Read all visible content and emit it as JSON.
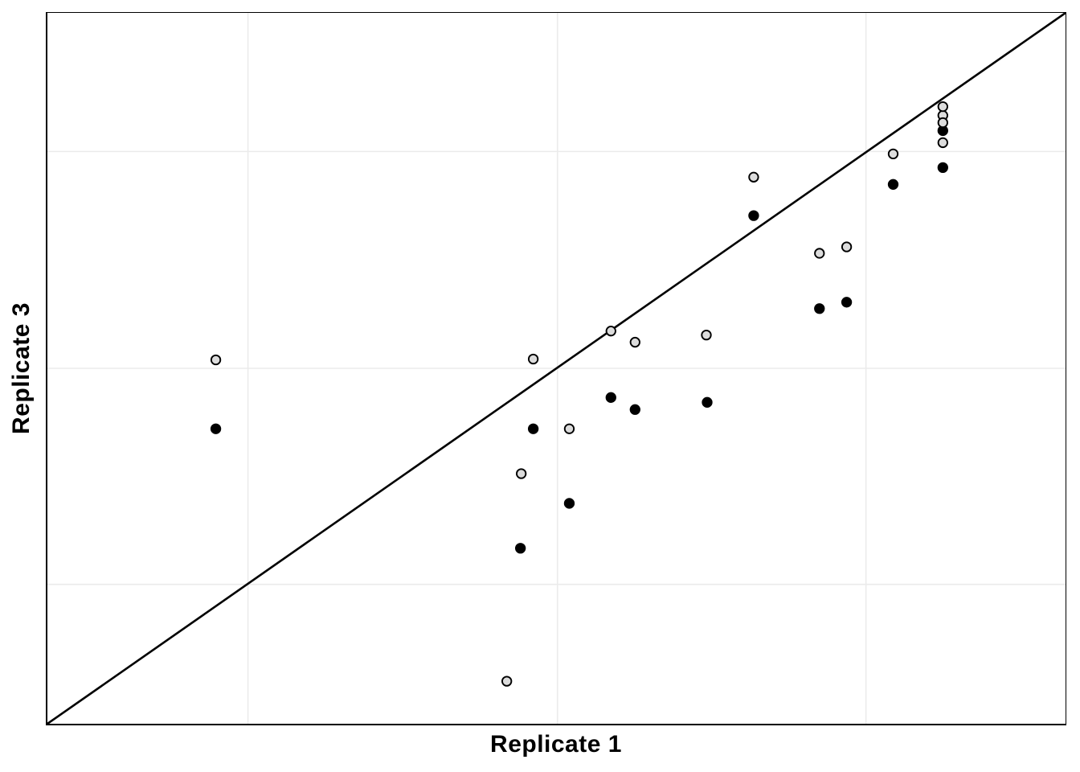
{
  "chart_data": {
    "type": "scatter",
    "title": "",
    "xlabel": "Replicate 1",
    "ylabel": "Replicate 3",
    "x_tick_labels": [],
    "y_tick_labels": [],
    "xlim": [
      0,
      1
    ],
    "ylim": [
      0,
      1
    ],
    "coordinates_note": "no numeric tick labels are shown in the figure; point coordinates below are normalized fractions of the panel (0,0 = bottom-left, 1,1 = top-right)",
    "grid": true,
    "legend_position": "none",
    "gridline_positions": {
      "x": [
        0.197,
        0.501,
        0.804
      ],
      "y": [
        0.196,
        0.5,
        0.805
      ]
    },
    "identity_line": {
      "show": true,
      "from": [
        0,
        0
      ],
      "to": [
        1,
        1
      ]
    },
    "series_colors": {
      "gray": "#dcdcdc",
      "black": "#000000"
    },
    "series": [
      {
        "name": "light-gray-points",
        "key": "gray",
        "fill": "#dcdcdc",
        "count": 16
      },
      {
        "name": "black-points",
        "key": "black",
        "fill": "#000000",
        "count": 13
      }
    ],
    "points": [
      {
        "x": 0.1654,
        "y": 0.5119,
        "series": "gray"
      },
      {
        "x": 0.1654,
        "y": 0.4149,
        "series": "black"
      },
      {
        "x": 0.4772,
        "y": 0.513,
        "series": "gray"
      },
      {
        "x": 0.4772,
        "y": 0.4149,
        "series": "black"
      },
      {
        "x": 0.4654,
        "y": 0.3518,
        "series": "gray"
      },
      {
        "x": 0.4646,
        "y": 0.2469,
        "series": "black"
      },
      {
        "x": 0.5126,
        "y": 0.4149,
        "series": "gray"
      },
      {
        "x": 0.5126,
        "y": 0.31,
        "series": "black"
      },
      {
        "x": 0.4512,
        "y": 0.0598,
        "series": "gray"
      },
      {
        "x": 0.5535,
        "y": 0.5524,
        "series": "gray"
      },
      {
        "x": 0.5535,
        "y": 0.4589,
        "series": "black"
      },
      {
        "x": 0.5772,
        "y": 0.5367,
        "series": "gray"
      },
      {
        "x": 0.5772,
        "y": 0.442,
        "series": "black"
      },
      {
        "x": 0.6472,
        "y": 0.5468,
        "series": "gray"
      },
      {
        "x": 0.648,
        "y": 0.4521,
        "series": "black"
      },
      {
        "x": 0.6937,
        "y": 0.7689,
        "series": "gray"
      },
      {
        "x": 0.6937,
        "y": 0.7148,
        "series": "black"
      },
      {
        "x": 0.7583,
        "y": 0.6618,
        "series": "gray"
      },
      {
        "x": 0.7583,
        "y": 0.584,
        "series": "black"
      },
      {
        "x": 0.785,
        "y": 0.6708,
        "series": "gray"
      },
      {
        "x": 0.785,
        "y": 0.593,
        "series": "black"
      },
      {
        "x": 0.8307,
        "y": 0.8016,
        "series": "gray"
      },
      {
        "x": 0.8307,
        "y": 0.7587,
        "series": "black"
      },
      {
        "x": 0.8795,
        "y": 0.8557,
        "series": "gray"
      },
      {
        "x": 0.8795,
        "y": 0.8681,
        "series": "gray"
      },
      {
        "x": 0.8795,
        "y": 0.8343,
        "series": "black"
      },
      {
        "x": 0.8795,
        "y": 0.8456,
        "series": "gray"
      },
      {
        "x": 0.8795,
        "y": 0.8174,
        "series": "gray"
      },
      {
        "x": 0.8795,
        "y": 0.7824,
        "series": "black"
      }
    ]
  },
  "colors": {
    "background": "#ffffff",
    "panel_border": "#000000",
    "grid": "#ebebeb",
    "identity_line": "#000000",
    "point_stroke": "#000000"
  }
}
